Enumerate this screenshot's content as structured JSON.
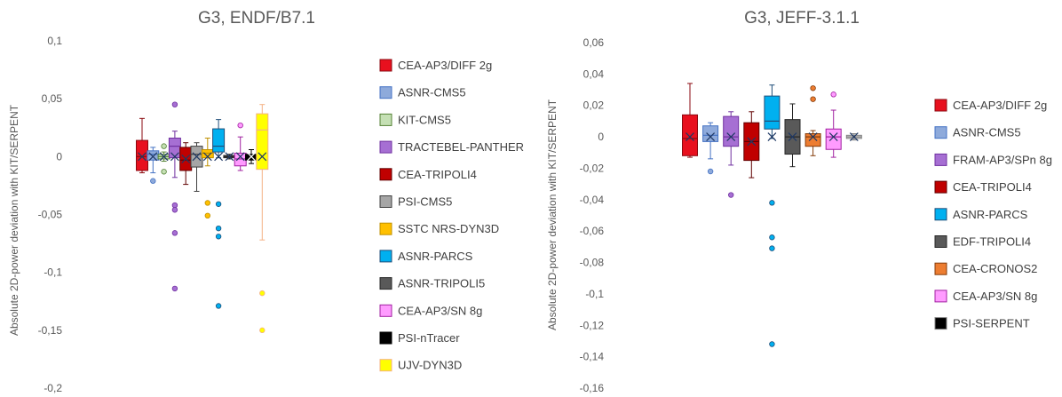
{
  "chart_data": [
    {
      "type": "box",
      "title": "G3, ENDF/B7.1",
      "ylabel": "Absolute 2D-power deviation with KIT/SERPENT",
      "ylim": [
        -0.2,
        0.1
      ],
      "yticks": [
        -0.2,
        -0.15,
        -0.1,
        -0.05,
        0,
        0.05,
        0.1
      ],
      "ytick_labels": [
        "-0,2",
        "-0,15",
        "-0,1",
        "-0,05",
        "0",
        "0,05",
        "0,1"
      ],
      "grid": false,
      "legend": "right",
      "series": [
        {
          "name": "CEA-AP3/DIFF 2g",
          "color": "#e8101e",
          "stroke": "#8b0a10",
          "min": -0.014,
          "q1": -0.012,
          "median": 0.0,
          "mean": 0.0,
          "q3": 0.014,
          "max": 0.033,
          "outliers": []
        },
        {
          "name": "ASNR-CMS5",
          "color": "#8eaadb",
          "stroke": "#4472c4",
          "min": -0.014,
          "q1": -0.003,
          "median": 0.002,
          "mean": 0.0,
          "q3": 0.005,
          "max": 0.008,
          "outliers": [
            -0.021
          ]
        },
        {
          "name": "KIT-CMS5",
          "color": "#c5e0b4",
          "stroke": "#548235",
          "min": -0.004,
          "q1": -0.002,
          "median": 0.0,
          "mean": 0.0,
          "q3": 0.002,
          "max": 0.004,
          "outliers": [
            0.009,
            -0.013
          ]
        },
        {
          "name": "TRACTEBEL-PANTHER",
          "color": "#a66fd3",
          "stroke": "#7030a0",
          "min": -0.018,
          "q1": -0.001,
          "median": 0.009,
          "mean": 0.0,
          "q3": 0.016,
          "max": 0.022,
          "outliers": [
            0.045,
            -0.042,
            -0.046,
            -0.066,
            -0.114
          ]
        },
        {
          "name": "CEA-TRIPOLI4",
          "color": "#c00000",
          "stroke": "#600000",
          "min": -0.024,
          "q1": -0.012,
          "median": -0.003,
          "mean": -0.002,
          "q3": 0.008,
          "max": 0.012,
          "outliers": []
        },
        {
          "name": "PSI-CMS5",
          "color": "#a6a6a6",
          "stroke": "#3f3f3f",
          "min": -0.03,
          "q1": -0.009,
          "median": 0.002,
          "mean": 0.0,
          "q3": 0.009,
          "max": 0.012,
          "outliers": []
        },
        {
          "name": "SSTC NRS-DYN3D",
          "color": "#ffc000",
          "stroke": "#bf9000",
          "min": -0.008,
          "q1": -0.001,
          "median": 0.003,
          "mean": 0.0,
          "q3": 0.006,
          "max": 0.016,
          "outliers": [
            -0.04,
            -0.051
          ]
        },
        {
          "name": "ASNR-PARCS",
          "color": "#00b0f0",
          "stroke": "#1f4e79",
          "min": -0.001,
          "q1": 0.004,
          "median": 0.009,
          "mean": 0.0,
          "q3": 0.024,
          "max": 0.032,
          "outliers": [
            -0.041,
            -0.062,
            -0.069,
            -0.129
          ]
        },
        {
          "name": "ASNR-TRIPOLI5",
          "color": "#595959",
          "stroke": "#262626",
          "min": -0.002,
          "q1": -0.001,
          "median": 0.0,
          "mean": 0.0,
          "q3": 0.001,
          "max": 0.002,
          "outliers": []
        },
        {
          "name": "CEA-AP3/SN 8g",
          "color": "#ff9bff",
          "stroke": "#a020a0",
          "min": -0.012,
          "q1": -0.008,
          "median": -0.002,
          "mean": 0.0,
          "q3": 0.003,
          "max": 0.017,
          "outliers": [
            0.027
          ]
        },
        {
          "name": "PSI-nTracer",
          "color": "#000000",
          "stroke": "#000000",
          "min": -0.006,
          "q1": -0.003,
          "median": 0.0,
          "mean": 0.0,
          "q3": 0.002,
          "max": 0.006,
          "outliers": []
        },
        {
          "name": "UJV-DYN3D",
          "color": "#ffff00",
          "stroke": "#f4b183",
          "min": -0.072,
          "q1": -0.011,
          "median": 0.023,
          "mean": 0.0,
          "q3": 0.037,
          "max": 0.045,
          "outliers": [
            -0.118,
            -0.15
          ]
        }
      ]
    },
    {
      "type": "box",
      "title": "G3, JEFF-3.1.1",
      "ylabel": "Absolute 2D-power deviation with KIT/SERPENT",
      "ylim": [
        -0.16,
        0.06
      ],
      "yticks": [
        -0.16,
        -0.14,
        -0.12,
        -0.1,
        -0.08,
        -0.06,
        -0.04,
        -0.02,
        0,
        0.02,
        0.04,
        0.06
      ],
      "ytick_labels": [
        "-0,16",
        "-0,14",
        "-0,12",
        "-0,1",
        "-0,08",
        "-0,06",
        "-0,04",
        "-0,02",
        "0",
        "0,02",
        "0,04",
        "0,06"
      ],
      "grid": false,
      "legend": "right",
      "series": [
        {
          "name": "CEA-AP3/DIFF 2g",
          "color": "#e8101e",
          "stroke": "#8b0a10",
          "min": -0.013,
          "q1": -0.012,
          "median": -0.001,
          "mean": 0.0,
          "q3": 0.014,
          "max": 0.034,
          "outliers": []
        },
        {
          "name": "ASNR-CMS5",
          "color": "#8eaadb",
          "stroke": "#4472c4",
          "min": -0.014,
          "q1": -0.003,
          "median": 0.001,
          "mean": 0.0,
          "q3": 0.007,
          "max": 0.009,
          "outliers": [
            -0.022
          ]
        },
        {
          "name": "FRAM-AP3/SPn 8g",
          "color": "#a66fd3",
          "stroke": "#7030a0",
          "min": -0.018,
          "q1": -0.006,
          "median": 0.0,
          "mean": 0.0,
          "q3": 0.013,
          "max": 0.016,
          "outliers": [
            -0.037
          ]
        },
        {
          "name": "CEA-TRIPOLI4",
          "color": "#c00000",
          "stroke": "#600000",
          "min": -0.026,
          "q1": -0.015,
          "median": -0.003,
          "mean": -0.003,
          "q3": 0.009,
          "max": 0.016,
          "outliers": []
        },
        {
          "name": "ASNR-PARCS",
          "color": "#00b0f0",
          "stroke": "#1f4e79",
          "min": -0.001,
          "q1": 0.005,
          "median": 0.01,
          "mean": 0.0,
          "q3": 0.026,
          "max": 0.033,
          "outliers": [
            -0.042,
            -0.064,
            -0.071,
            -0.132
          ]
        },
        {
          "name": "EDF-TRIPOLI4",
          "color": "#595959",
          "stroke": "#262626",
          "min": -0.019,
          "q1": -0.011,
          "median": 0.0,
          "mean": 0.0,
          "q3": 0.011,
          "max": 0.021,
          "outliers": []
        },
        {
          "name": "CEA-CRONOS2",
          "color": "#ed7d31",
          "stroke": "#843c0c",
          "min": -0.012,
          "q1": -0.006,
          "median": 0.0,
          "mean": 0.0,
          "q3": 0.002,
          "max": 0.004,
          "outliers": [
            0.031,
            0.024
          ]
        },
        {
          "name": "CEA-AP3/SN 8g",
          "color": "#ff9bff",
          "stroke": "#a020a0",
          "min": -0.013,
          "q1": -0.008,
          "median": 0.0,
          "mean": 0.0,
          "q3": 0.005,
          "max": 0.017,
          "outliers": [
            0.027
          ]
        },
        {
          "name": "PSI-SERPENT",
          "color": "#d9d9d9",
          "stroke": "#7f7f7f",
          "legend_color": "#000000",
          "min": -0.002,
          "q1": -0.001,
          "median": 0.0,
          "mean": 0.0,
          "q3": 0.001,
          "max": 0.002,
          "outliers": []
        }
      ]
    }
  ]
}
